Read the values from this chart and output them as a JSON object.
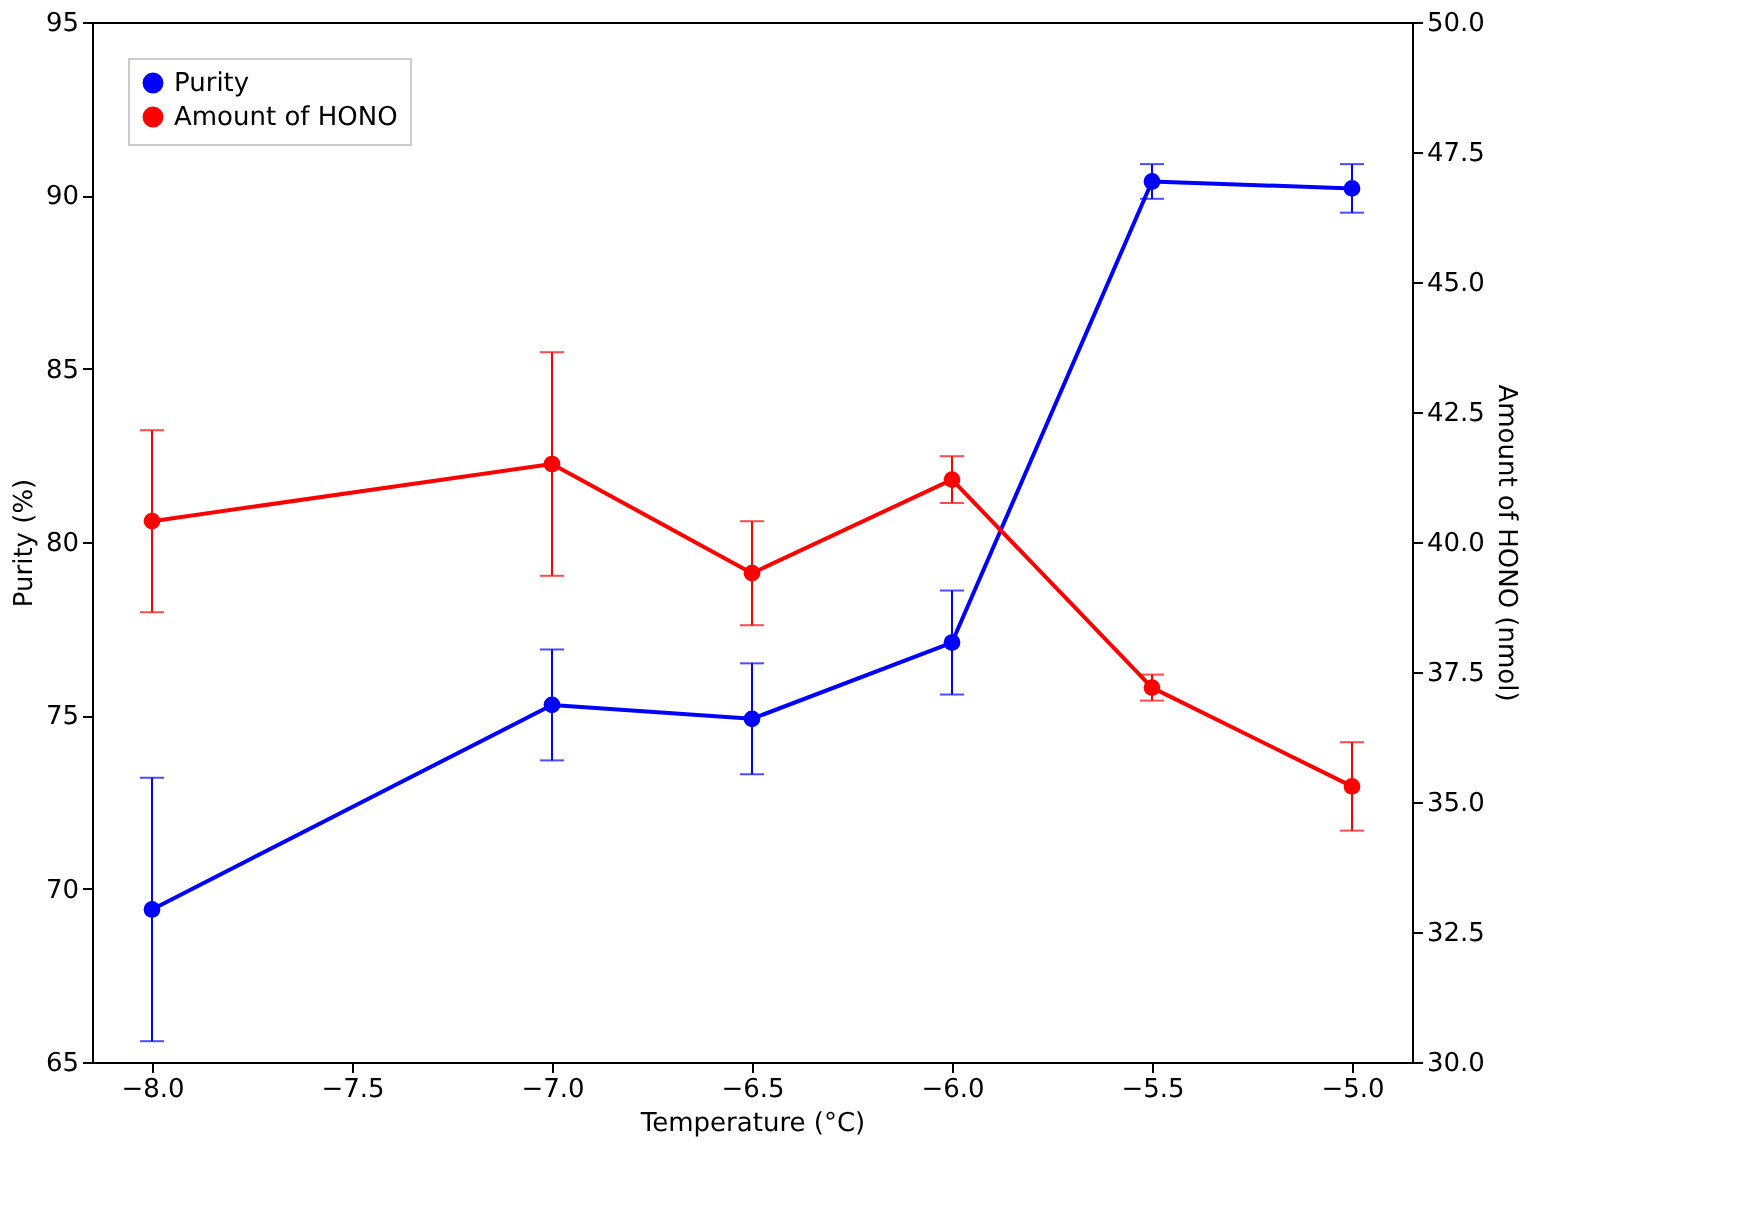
{
  "chart_data": {
    "type": "line",
    "xlabel": "Temperature (°C)",
    "ylabel": "Purity (%)",
    "y2label": "Amount of HONO (nmol)",
    "x": [
      -8.0,
      -7.0,
      -6.5,
      -6.0,
      -5.5,
      -5.0
    ],
    "xlim": [
      -8.15,
      -4.85
    ],
    "xticks": [
      {
        "value": -8,
        "label": "−8.0"
      },
      {
        "value": -7.5,
        "label": "−7.5"
      },
      {
        "value": -7,
        "label": "−7.0"
      },
      {
        "value": -6.5,
        "label": "−6.5"
      },
      {
        "value": -6,
        "label": "−6.0"
      },
      {
        "value": -5.5,
        "label": "−5.5"
      },
      {
        "value": -5,
        "label": "−5.0"
      }
    ],
    "ylim": [
      65,
      95
    ],
    "yticks": [
      65,
      70,
      75,
      80,
      85,
      90,
      95
    ],
    "y2lim": [
      30,
      50
    ],
    "y2ticks": [
      {
        "value": 30,
        "label": "30.0"
      },
      {
        "value": 32.5,
        "label": "32.5"
      },
      {
        "value": 35,
        "label": "35.0"
      },
      {
        "value": 37.5,
        "label": "37.5"
      },
      {
        "value": 40,
        "label": "40.0"
      },
      {
        "value": 42.5,
        "label": "42.5"
      },
      {
        "value": 45,
        "label": "45.0"
      },
      {
        "value": 47.5,
        "label": "47.5"
      },
      {
        "value": 50,
        "label": "50.0"
      }
    ],
    "legend": "top left",
    "marker": "circle",
    "line_style": "solid",
    "series": [
      {
        "name": "Purity",
        "color": "#0000ff",
        "values": [
          69.4,
          75.3,
          74.9,
          77.1,
          90.4,
          90.2
        ],
        "errors": [
          3.8,
          1.6,
          1.6,
          1.5,
          0.5,
          0.7
        ]
      },
      {
        "name": "Amount of HONO",
        "color": "#ff0000",
        "axis": "y2",
        "values": [
          40.4,
          41.5,
          39.4,
          41.2,
          37.2,
          35.3
        ],
        "errors": [
          1.75,
          2.15,
          1.0,
          0.45,
          0.25,
          0.85
        ]
      }
    ]
  }
}
